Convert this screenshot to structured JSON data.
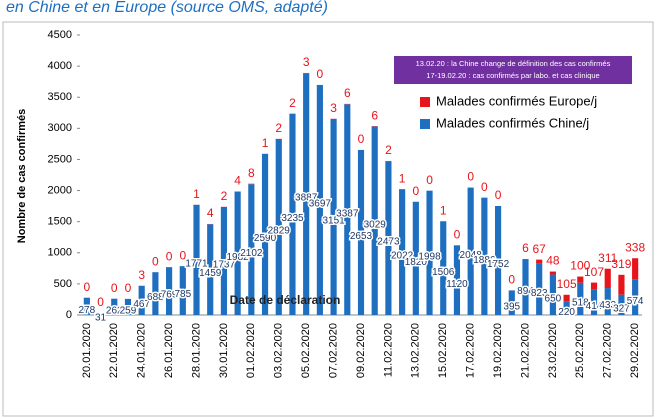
{
  "chart_data": {
    "type": "stacked-bar",
    "title": "en Chine et en Europe (source OMS, adapté)",
    "y_label": "Nombre de cas confirmés",
    "x_label": "Date de déclaration",
    "annotation": [
      "13.02.20 : la Chine change de définition des cas confirmés",
      "17-19.02.20 : cas confirmés par labo. et cas clinique"
    ],
    "categories": [
      "20.01.2020",
      null,
      "22.01.2020",
      null,
      "24.01.2020",
      null,
      "26.01.2020",
      null,
      "28.01.2020",
      null,
      "30.01.2020",
      null,
      "01.02.2020",
      null,
      "03.02.2020",
      null,
      "05.02.2020",
      null,
      "07.02.2020",
      null,
      "09.02.2020",
      null,
      "11.02.2020",
      null,
      "13.02.2020",
      null,
      "15.02.2020",
      null,
      "17.02.2020",
      null,
      "19.02.2020",
      null,
      "21.02.2020",
      null,
      "23.02.2020",
      null,
      "25.02.2020",
      null,
      "27.02.2020",
      null,
      "29.02.2020"
    ],
    "series": [
      {
        "name": "Malades confirmés Chine/j",
        "color": "#1f6fc1",
        "values": [
          278,
          31,
          262,
          259,
          467,
          688,
          769,
          785,
          1771,
          1459,
          1737,
          1982,
          2102,
          2590,
          2829,
          3235,
          3887,
          3697,
          3151,
          3387,
          2653,
          3029,
          2473,
          2022,
          1820,
          1998,
          1506,
          1120,
          2048,
          1886,
          1752,
          395,
          894,
          823,
          650,
          220,
          518,
          414,
          433,
          327,
          574
        ]
      },
      {
        "name": "Malades confirmés Europe/j",
        "color": "#e8141c",
        "values": [
          0,
          0,
          0,
          0,
          3,
          0,
          0,
          0,
          1,
          4,
          2,
          4,
          8,
          1,
          2,
          2,
          3,
          0,
          3,
          6,
          0,
          6,
          2,
          1,
          0,
          0,
          1,
          0,
          0,
          0,
          0,
          0,
          6,
          67,
          48,
          105,
          100,
          107,
          311,
          319,
          338
        ]
      }
    ],
    "legend_order": [
      1,
      0
    ],
    "ylim": [
      0,
      4500
    ],
    "yticks": [
      0,
      500,
      1000,
      1500,
      2000,
      2500,
      3000,
      3500,
      4000,
      4500
    ]
  }
}
